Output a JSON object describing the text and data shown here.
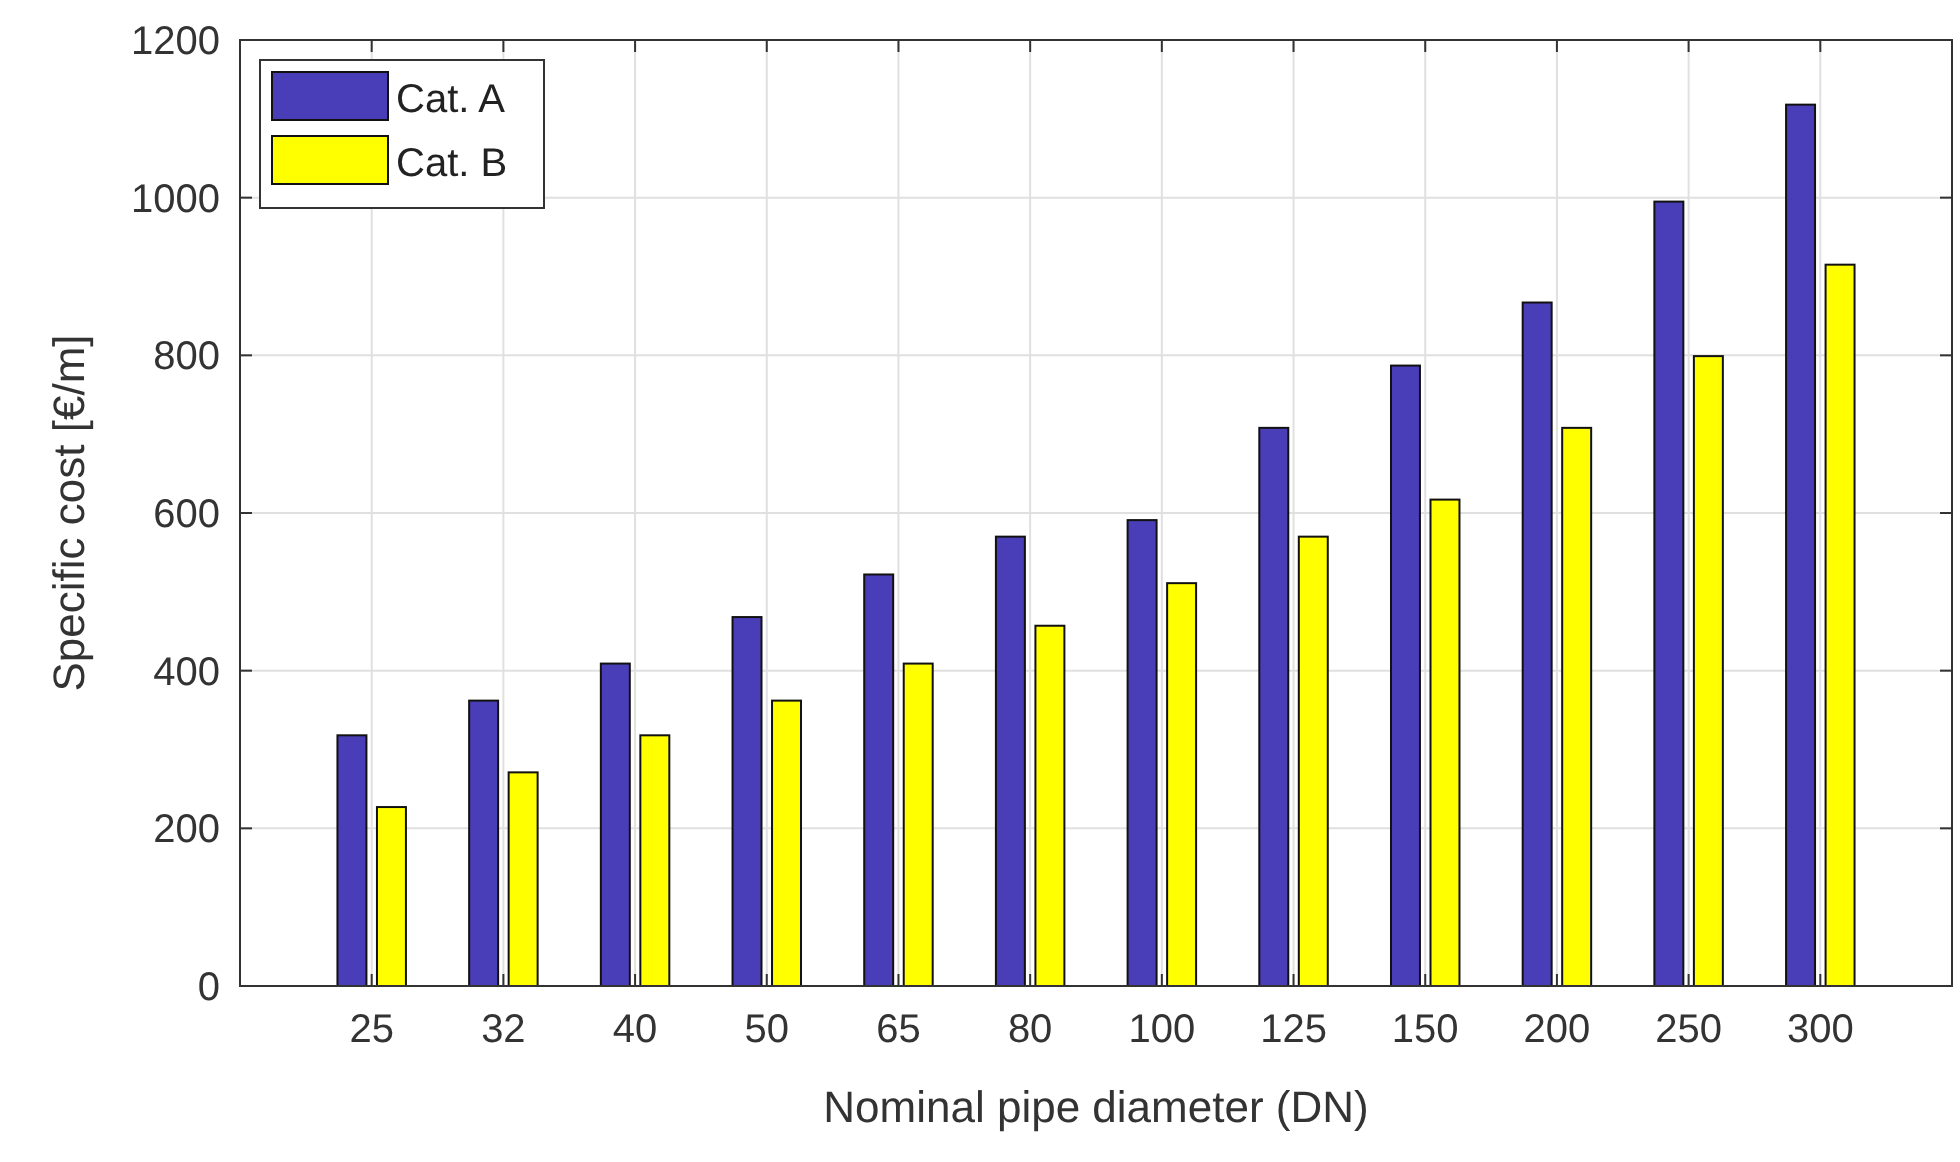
{
  "chart_data": {
    "type": "bar",
    "xlabel": "Nominal pipe diameter (DN)",
    "ylabel": "Specific cost [€/m]",
    "categories": [
      "25",
      "32",
      "40",
      "50",
      "65",
      "80",
      "100",
      "125",
      "150",
      "200",
      "250",
      "300"
    ],
    "series": [
      {
        "name": "Cat. A",
        "color": "#4a3db8",
        "values": [
          318,
          362,
          409,
          468,
          522,
          570,
          591,
          708,
          787,
          867,
          995,
          1118
        ]
      },
      {
        "name": "Cat. B",
        "color": "#ffff00",
        "values": [
          227,
          271,
          318,
          362,
          409,
          457,
          511,
          570,
          617,
          708,
          799,
          915
        ]
      }
    ],
    "ylim": [
      0,
      1200
    ],
    "yticks": [
      0,
      200,
      400,
      600,
      800,
      1000,
      1200
    ],
    "grid": true,
    "legend": "top left"
  }
}
